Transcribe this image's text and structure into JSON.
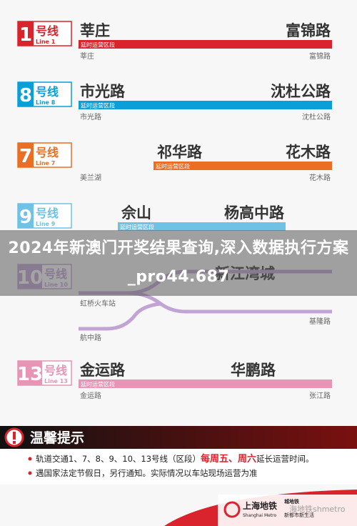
{
  "lines": [
    {
      "number": "1",
      "label": "号线",
      "en": "Line 1",
      "color": "#d9232d",
      "from": "莘庄",
      "to": "富锦路",
      "bar": "延时运营区段",
      "below": [
        "莘庄",
        "富锦路"
      ]
    },
    {
      "number": "8",
      "label": "号线",
      "en": "Line 8",
      "color": "#0a9fd8",
      "from": "市光路",
      "to": "沈杜公路",
      "bar": "延时运营区段",
      "below": [
        "市光路",
        "沈杜公路"
      ]
    },
    {
      "number": "7",
      "label": "号线",
      "en": "Line 7",
      "color": "#ea6f24",
      "from": "祁华路",
      "to": "花木路",
      "bar": "延时运营区段",
      "below": [
        "美兰湖",
        "花木路"
      ]
    },
    {
      "number": "9",
      "label": "号线",
      "en": "Line 9",
      "color": "#6fc2e6",
      "from": "佘山",
      "to": "杨高中路",
      "bar": "延时运营区段",
      "below": []
    },
    {
      "number": "10",
      "label": "号线",
      "en": "Line 10",
      "color": "#c1a3d4",
      "from": "",
      "to": "新江湾城",
      "bar": "",
      "below": [
        "虹桥火车站",
        "基隆路",
        "航中路"
      ]
    },
    {
      "number": "13",
      "label": "号线",
      "en": "Line 13",
      "color": "#e695b4",
      "from": "金运路",
      "to": "华鹏路",
      "bar": "延时运营区段",
      "below": [
        "金运路",
        "张江路"
      ]
    }
  ],
  "overlay": "2024年新澳门开奖结果查询,深入数据执行方案_pro44.687",
  "notice": {
    "title": "温馨提示",
    "items": [
      {
        "parts": [
          "轨道交通1、7、8、9、10、13号线（区段）",
          "每周五、周六",
          "延长运营时间。"
        ]
      },
      {
        "parts": [
          "遇国家法定节假日，另行通知。实际情况以车站现场运营为准"
        ]
      }
    ]
  },
  "logo": {
    "name": "上海地铁",
    "en": "Shanghai Metro",
    "slogan1": "城地铁",
    "slogan2": "新都市新生活",
    "watermark": "海地铁shmetro"
  }
}
